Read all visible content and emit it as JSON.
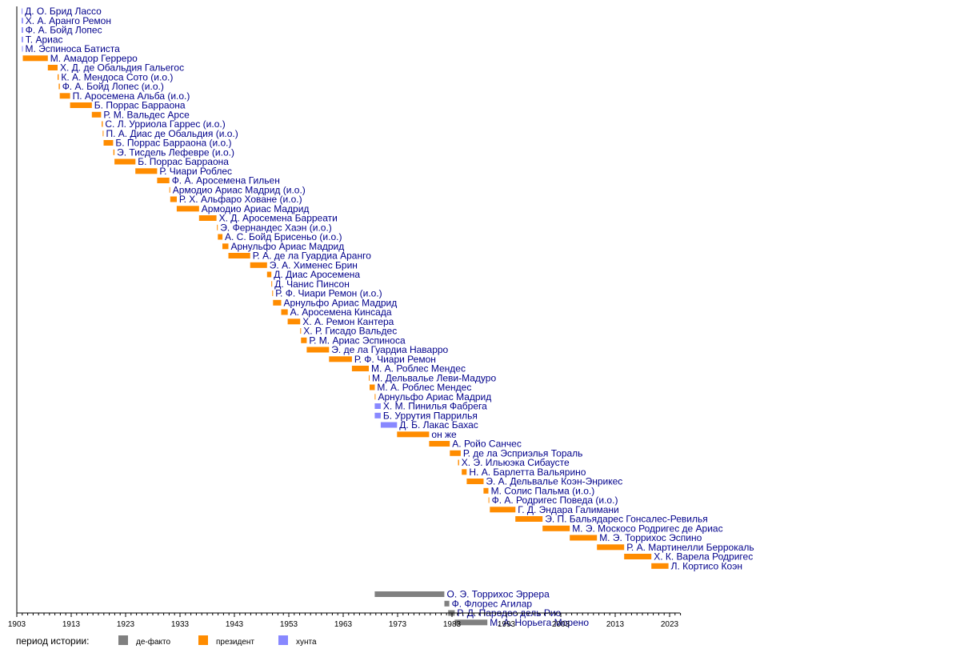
{
  "chart_data": {
    "type": "timeline",
    "title": "",
    "xlabel": "",
    "ylabel": "",
    "xlim": [
      1903,
      2025
    ],
    "x_ticks": [
      1903,
      1913,
      1923,
      1933,
      1943,
      1953,
      1963,
      1973,
      1983,
      1993,
      2003,
      2013,
      2023
    ],
    "grid": false,
    "legend": {
      "placement": "bottom-left",
      "title": "период истории:",
      "entries": [
        {
          "key": "defacto",
          "label": "де-факто",
          "color": "#808080"
        },
        {
          "key": "president",
          "label": "президент",
          "color": "#ff8c00"
        },
        {
          "key": "junta",
          "label": "хунта",
          "color": "#8888ff"
        }
      ]
    },
    "bars": [
      {
        "label": "Д. О. Брид Лассо",
        "start": 1903.9,
        "end": 1903.95,
        "period": "junta"
      },
      {
        "label": "Х. А. Аранго Ремон",
        "start": 1903.9,
        "end": 1904.15,
        "period": "junta"
      },
      {
        "label": "Ф. А. Бойд Лопес",
        "start": 1903.9,
        "end": 1904.15,
        "period": "junta"
      },
      {
        "label": "Т. Ариас",
        "start": 1903.9,
        "end": 1904.15,
        "period": "junta"
      },
      {
        "label": "М. Эспиноса Батиста",
        "start": 1903.95,
        "end": 1904.05,
        "period": "junta"
      },
      {
        "label": "М. Амадор Герреро",
        "start": 1904.1,
        "end": 1908.7,
        "period": "president"
      },
      {
        "label": "Х. Д. де Обальдия Гальегос",
        "start": 1908.7,
        "end": 1910.5,
        "period": "president"
      },
      {
        "label": "К. А. Мендоса Сото (и.о.)",
        "start": 1910.5,
        "end": 1910.7,
        "period": "president"
      },
      {
        "label": "Ф. А. Бойд Лопес (и.о.)",
        "start": 1910.7,
        "end": 1910.9,
        "period": "president"
      },
      {
        "label": "П. Аросемена Альба (и.о.)",
        "start": 1910.9,
        "end": 1912.8,
        "period": "president"
      },
      {
        "label": "Б. Поррас Барраона",
        "start": 1912.8,
        "end": 1916.8,
        "period": "president"
      },
      {
        "label": "Р. М. Вальдес Арсе",
        "start": 1916.8,
        "end": 1918.5,
        "period": "president"
      },
      {
        "label": "С. Л. Урриола Гаррес (и.о.)",
        "start": 1918.6,
        "end": 1918.8,
        "period": "president"
      },
      {
        "label": "П. А. Диас де Обальдия (и.о.)",
        "start": 1918.8,
        "end": 1918.95,
        "period": "president"
      },
      {
        "label": "Б. Поррас Барраона (и.о.)",
        "start": 1918.95,
        "end": 1920.7,
        "period": "president"
      },
      {
        "label": "Э. Тисдель Лефевре (и.о.)",
        "start": 1920.75,
        "end": 1920.95,
        "period": "president"
      },
      {
        "label": "Б. Поррас Барраона",
        "start": 1920.95,
        "end": 1924.8,
        "period": "president"
      },
      {
        "label": "Р. Чиари Роблес",
        "start": 1924.8,
        "end": 1928.8,
        "period": "president"
      },
      {
        "label": "Ф. А. Аросемена Гильен",
        "start": 1928.8,
        "end": 1931.05,
        "period": "president"
      },
      {
        "label": "Армодио Ариас Мадрид (и.о.)",
        "start": 1931.05,
        "end": 1931.2,
        "period": "president"
      },
      {
        "label": "Р. Х. Альфаро Ховане (и.о.)",
        "start": 1931.2,
        "end": 1932.4,
        "period": "president"
      },
      {
        "label": "Армодио Ариас Мадрид",
        "start": 1932.4,
        "end": 1936.5,
        "period": "president"
      },
      {
        "label": "Х. Д. Аросемена Барреати",
        "start": 1936.5,
        "end": 1939.7,
        "period": "president"
      },
      {
        "label": "Э. Фернандес Хаэн (и.о.)",
        "start": 1939.8,
        "end": 1939.95,
        "period": "president"
      },
      {
        "label": "А. С. Бойд Брисеньо (и.о.)",
        "start": 1939.95,
        "end": 1940.8,
        "period": "president"
      },
      {
        "label": "Арнульфо Ариас Мадрид",
        "start": 1940.8,
        "end": 1941.9,
        "period": "president"
      },
      {
        "label": "Р. А. де ла Гуардиа Аранго",
        "start": 1941.9,
        "end": 1945.9,
        "period": "president"
      },
      {
        "label": "Э. А. Хименес Брин",
        "start": 1945.9,
        "end": 1949.0,
        "period": "president"
      },
      {
        "label": "Д. Диас Аросемена",
        "start": 1949.0,
        "end": 1949.8,
        "period": "president"
      },
      {
        "label": "Д. Чанис Пинсон",
        "start": 1949.8,
        "end": 1949.95,
        "period": "president"
      },
      {
        "label": "Р. Ф. Чиари Ремон (и.о.)",
        "start": 1949.95,
        "end": 1950.1,
        "period": "president"
      },
      {
        "label": "Арнульфо Ариас Мадрид",
        "start": 1950.1,
        "end": 1951.6,
        "period": "president"
      },
      {
        "label": "А. Аросемена Кинсада",
        "start": 1951.6,
        "end": 1952.8,
        "period": "president"
      },
      {
        "label": "Х. А. Ремон Кантера",
        "start": 1952.8,
        "end": 1955.1,
        "period": "president"
      },
      {
        "label": "Х. Р. Гисадо Вальдес",
        "start": 1955.1,
        "end": 1955.25,
        "period": "president"
      },
      {
        "label": "Р. М. Ариас Эспиноса",
        "start": 1955.25,
        "end": 1956.3,
        "period": "president"
      },
      {
        "label": "Э. де ла Гуардиа Наварро",
        "start": 1956.3,
        "end": 1960.4,
        "period": "president"
      },
      {
        "label": "Р. Ф. Чиари Ремон",
        "start": 1960.4,
        "end": 1964.6,
        "period": "president"
      },
      {
        "label": "М. А. Роблес Мендес",
        "start": 1964.6,
        "end": 1967.7,
        "period": "president"
      },
      {
        "label": "М. Дельвалье Леви-Мадуро",
        "start": 1967.7,
        "end": 1967.85,
        "period": "president"
      },
      {
        "label": "М. А. Роблес Мендес",
        "start": 1967.85,
        "end": 1968.8,
        "period": "president"
      },
      {
        "label": "Арнульфо Ариас Мадрид",
        "start": 1968.8,
        "end": 1968.95,
        "period": "president"
      },
      {
        "label": "Х. М. Пинилья Фабрега",
        "start": 1968.8,
        "end": 1969.9,
        "period": "junta"
      },
      {
        "label": "Б. Уррутия Паррилья",
        "start": 1968.8,
        "end": 1969.9,
        "period": "junta"
      },
      {
        "label": "Д. Б. Лакас Бахас",
        "start": 1969.9,
        "end": 1972.9,
        "period": "junta"
      },
      {
        "label": "он же",
        "start": 1972.9,
        "end": 1978.8,
        "period": "president"
      },
      {
        "label": "А. Ройо Санчес",
        "start": 1978.8,
        "end": 1982.6,
        "period": "president"
      },
      {
        "label": "Р. де ла Эсприэлья Тораль",
        "start": 1982.6,
        "end": 1984.6,
        "period": "president"
      },
      {
        "label": "Х. Э. Ильюэка Сибаусте",
        "start": 1984.1,
        "end": 1984.3,
        "period": "president"
      },
      {
        "label": "Н. А. Барлетта Вальярино",
        "start": 1984.8,
        "end": 1985.7,
        "period": "president"
      },
      {
        "label": "Э. А. Дельвалье Коэн-Энрикес",
        "start": 1985.7,
        "end": 1988.8,
        "period": "president"
      },
      {
        "label": "М. Солис Пальма (и.о.)",
        "start": 1988.8,
        "end": 1989.7,
        "period": "president"
      },
      {
        "label": "Ф. А. Родригес Поведа (и.о.)",
        "start": 1989.7,
        "end": 1989.85,
        "period": "president"
      },
      {
        "label": "Г. Д. Эндара Галимани",
        "start": 1989.95,
        "end": 1994.65,
        "period": "president"
      },
      {
        "label": "Э. П. Бальядарес Гонсалес-Ревилья",
        "start": 1994.65,
        "end": 1999.65,
        "period": "president"
      },
      {
        "label": "М. Э. Москосо Родригес де Ариас",
        "start": 1999.65,
        "end": 2004.65,
        "period": "president"
      },
      {
        "label": "М. Э. Торрихос Эспино",
        "start": 2004.65,
        "end": 2009.65,
        "period": "president"
      },
      {
        "label": "Р. А. Мартинелли Беррокаль",
        "start": 2009.65,
        "end": 2014.65,
        "period": "president"
      },
      {
        "label": "Х. К. Варела Родригес",
        "start": 2014.65,
        "end": 2019.65,
        "period": "president"
      },
      {
        "label": "Л. Кортисо Коэн",
        "start": 2019.65,
        "end": 2022.8,
        "period": "president"
      },
      {
        "label": "О. Э. Торрихос Эррера",
        "start": 1968.8,
        "end": 1981.6,
        "period": "defacto",
        "gap_before": true
      },
      {
        "label": "Ф. Флорес Агилар",
        "start": 1981.6,
        "end": 1982.5,
        "period": "defacto"
      },
      {
        "label": "Р. Д. Паредес дель Рио",
        "start": 1982.3,
        "end": 1983.5,
        "period": "defacto"
      },
      {
        "label": "М. А. Норьега Морено",
        "start": 1983.5,
        "end": 1989.5,
        "period": "defacto"
      }
    ]
  }
}
